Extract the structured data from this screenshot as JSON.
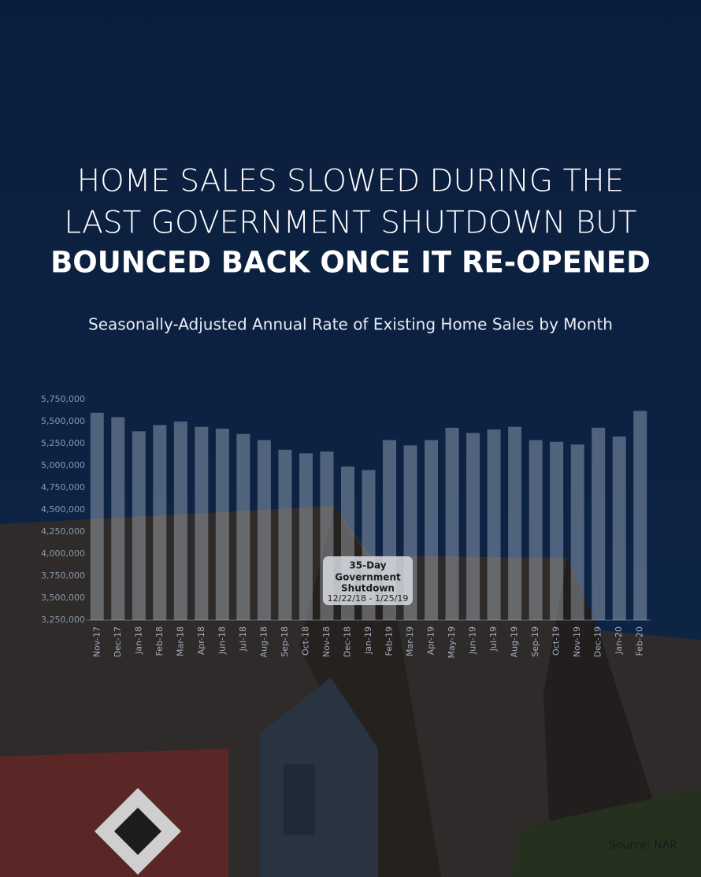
{
  "chart_data": {
    "type": "bar",
    "title": [
      "HOME SALES SLOWED DURING THE",
      "LAST GOVERNMENT SHUTDOWN BUT",
      "BOUNCED BACK ONCE IT RE-OPENED"
    ],
    "subtitle": "Seasonally-Adjusted Annual Rate of Existing Home Sales by Month",
    "categories": [
      "Nov-17",
      "Dec-17",
      "Jan-18",
      "Feb-18",
      "Mar-18",
      "Apr-18",
      "Jun-18",
      "Jul-18",
      "Aug-18",
      "Sep-18",
      "Oct-18",
      "Nov-18",
      "Dec-18",
      "Jan-19",
      "Feb-19",
      "Mar-19",
      "Apr-19",
      "May-19",
      "Jun-19",
      "Jul-19",
      "Aug-19",
      "Sep-19",
      "Oct-19",
      "Nov-19",
      "Dec-19",
      "Jan-20",
      "Feb-20"
    ],
    "values": [
      5600000,
      5550000,
      5390000,
      5460000,
      5500000,
      5440000,
      5420000,
      5360000,
      5290000,
      5180000,
      5140000,
      5160000,
      4990000,
      4950000,
      5290000,
      5230000,
      5290000,
      5430000,
      5370000,
      5410000,
      5440000,
      5290000,
      5270000,
      5240000,
      5430000,
      5330000,
      5620000
    ],
    "color": "rgba(225,232,245,0.32)",
    "ylim": [
      3250000,
      5750000
    ],
    "yticks": [
      {
        "value": 3250000,
        "label": "3,250,000"
      },
      {
        "value": 3500000,
        "label": "3,500,000"
      },
      {
        "value": 3750000,
        "label": "3,750,000"
      },
      {
        "value": 4000000,
        "label": "4,000,000"
      },
      {
        "value": 4250000,
        "label": "4,250,000"
      },
      {
        "value": 4500000,
        "label": "4,500,000"
      },
      {
        "value": 4750000,
        "label": "4,750,000"
      },
      {
        "value": 5000000,
        "label": "5,000,000"
      },
      {
        "value": 5250000,
        "label": "5,250,000"
      },
      {
        "value": 5500000,
        "label": "5,500,000"
      },
      {
        "value": 5750000,
        "label": "5,750,000"
      }
    ],
    "annotation": [
      "35-Day",
      "Government",
      "Shutdown",
      "12/22/18 - 1/25/19"
    ],
    "source": "Source: NAR"
  }
}
